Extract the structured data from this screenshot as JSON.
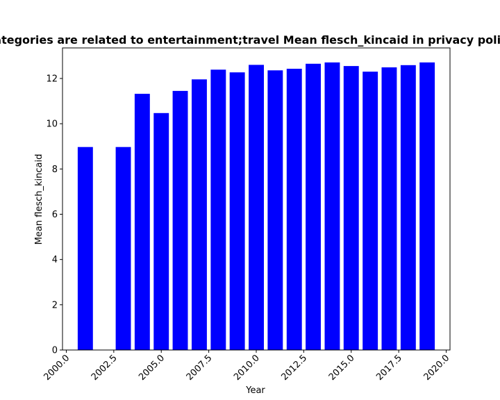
{
  "chart_data": {
    "type": "bar",
    "title": "Categories are related to entertainment;travel Mean flesch_kincaid in privacy policies",
    "xlabel": "Year",
    "ylabel": "Mean flesch_kincaid",
    "x": [
      2001,
      2003,
      2004,
      2005,
      2006,
      2007,
      2008,
      2009,
      2010,
      2011,
      2012,
      2013,
      2014,
      2015,
      2016,
      2017,
      2018,
      2019
    ],
    "values": [
      8.97,
      8.97,
      11.32,
      10.47,
      11.45,
      11.96,
      12.39,
      12.27,
      12.6,
      12.36,
      12.43,
      12.65,
      12.71,
      12.55,
      12.3,
      12.49,
      12.59,
      12.71
    ],
    "xlim": [
      1999.8,
      2020.2
    ],
    "ylim": [
      0,
      13.35
    ],
    "xticks": [
      2000.0,
      2002.5,
      2005.0,
      2007.5,
      2010.0,
      2012.5,
      2015.0,
      2017.5,
      2020.0
    ],
    "xtick_labels": [
      "2000.0",
      "2002.5",
      "2005.0",
      "2007.5",
      "2010.0",
      "2012.5",
      "2015.0",
      "2017.5",
      "2020.0"
    ],
    "yticks": [
      0,
      2,
      4,
      6,
      8,
      10,
      12
    ],
    "ytick_labels": [
      "0",
      "2",
      "4",
      "6",
      "8",
      "10",
      "12"
    ],
    "bar_width_years": 0.8,
    "bar_color": "#0000ff",
    "grid": false
  }
}
